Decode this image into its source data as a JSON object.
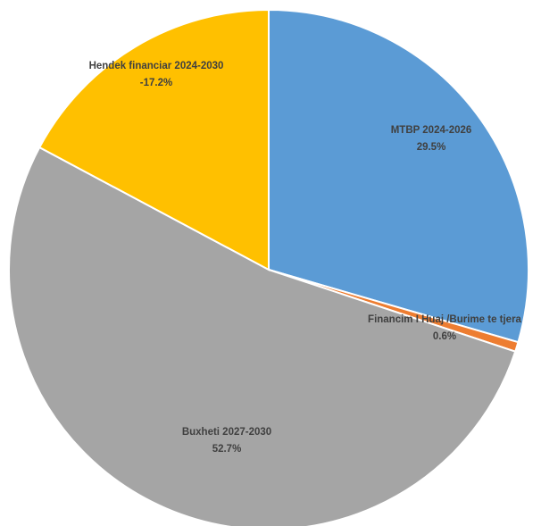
{
  "chart_data": {
    "type": "pie",
    "slices": [
      {
        "label": "MTBP 2024-2026",
        "value_text": "29.5%",
        "value": 29.5,
        "color": "#5B9BD5"
      },
      {
        "label": "Financim I Huaj /Burime te tjera",
        "value_text": "0.6%",
        "value": 0.6,
        "color": "#ED7D31"
      },
      {
        "label": "Buxheti 2027-2030",
        "value_text": "52.7%",
        "value": 52.7,
        "color": "#A5A5A5"
      },
      {
        "label": "Hendek financiar 2024-2030",
        "value_text": "-17.2%",
        "value": 17.2,
        "color": "#FFC000"
      }
    ]
  }
}
